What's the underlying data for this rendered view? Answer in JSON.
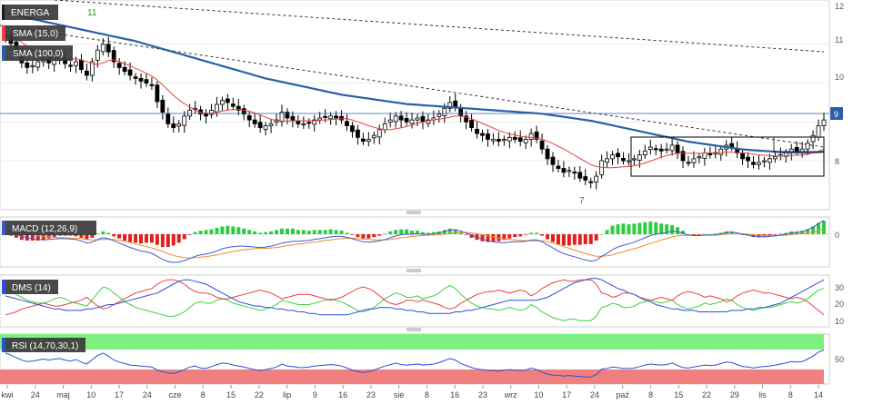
{
  "colors": {
    "up": "#ffffff",
    "down": "#000000",
    "sma15": "#e8413c",
    "sma100": "#2b5fa6",
    "macd": "#3a5bd1",
    "signal": "#f08a2a",
    "hist_pos": "#2ecc40",
    "hist_neg": "#e0201a",
    "dms_plus": "#3cd13c",
    "dms_minus": "#e8413c",
    "adx": "#2b4fd6",
    "rsi": "#2b4fd6",
    "rsi_over": "#7ff07f",
    "rsi_under": "#f07f7f",
    "label_bg": "#3a3a3a"
  },
  "price_panel": {
    "ticker": "ENERGA",
    "legend": [
      "SMA (15,0)",
      "SMA (100,0)"
    ],
    "y_ticks": [
      "12",
      "11",
      "10",
      "9",
      "8"
    ],
    "last_price_tag": "9",
    "annotations": {
      "high": "11",
      "low": "7"
    }
  },
  "macd_panel": {
    "legend": "MACD (12,26,9)",
    "y_ticks": [
      "0"
    ]
  },
  "dms_panel": {
    "legend": "DMS (14)",
    "y_ticks": [
      "30",
      "20",
      "10"
    ]
  },
  "rsi_panel": {
    "legend": "RSI (14,70,30,1)",
    "y_ticks": [
      "50"
    ]
  },
  "x_axis": {
    "labels": [
      "kwi",
      "24",
      "maj",
      "10",
      "17",
      "24",
      "cze",
      "8",
      "15",
      "22",
      "lip",
      "9",
      "16",
      "23",
      "sie",
      "8",
      "16",
      "23",
      "wrz",
      "10",
      "17",
      "24",
      "paź",
      "8",
      "15",
      "22",
      "29",
      "lis",
      "8",
      "14"
    ]
  },
  "chart_data": {
    "type": "candlestick",
    "y_range": [
      7.0,
      12.1
    ],
    "closes": [
      11.2,
      11.02,
      10.78,
      10.52,
      10.4,
      10.45,
      10.55,
      10.6,
      10.52,
      10.58,
      10.62,
      10.5,
      10.45,
      10.55,
      10.35,
      10.2,
      10.55,
      10.85,
      11.0,
      10.8,
      10.55,
      10.4,
      10.3,
      10.2,
      10.12,
      10.05,
      10.0,
      9.95,
      9.52,
      9.25,
      8.95,
      8.85,
      8.95,
      9.15,
      9.3,
      9.35,
      9.2,
      9.15,
      9.3,
      9.45,
      9.55,
      9.5,
      9.4,
      9.3,
      9.2,
      9.05,
      8.95,
      8.85,
      8.9,
      8.95,
      9.05,
      9.25,
      9.1,
      9.05,
      8.95,
      8.95,
      8.98,
      9.05,
      9.1,
      9.12,
      9.15,
      9.1,
      9.05,
      8.9,
      8.75,
      8.6,
      8.5,
      8.55,
      8.65,
      8.8,
      8.95,
      9.05,
      9.15,
      9.05,
      9.0,
      9.05,
      9.1,
      9.0,
      9.05,
      9.1,
      9.2,
      9.35,
      9.5,
      9.4,
      9.15,
      9.0,
      8.85,
      8.7,
      8.65,
      8.55,
      8.55,
      8.5,
      8.55,
      8.6,
      8.55,
      8.5,
      8.55,
      8.7,
      8.55,
      8.3,
      8.05,
      7.9,
      7.8,
      7.7,
      7.75,
      7.7,
      7.55,
      7.5,
      7.45,
      7.6,
      8.0,
      8.05,
      8.15,
      8.1,
      8.0,
      8.0,
      8.05,
      8.15,
      8.25,
      8.35,
      8.3,
      8.25,
      8.3,
      8.4,
      8.2,
      8.0,
      7.95,
      8.05,
      8.1,
      8.2,
      8.15,
      8.2,
      8.3,
      8.4,
      8.35,
      8.2,
      8.05,
      8.0,
      7.9,
      7.95,
      8.0,
      8.05,
      8.1,
      8.15,
      8.2,
      8.3,
      8.25,
      8.3,
      8.45,
      8.65,
      8.9,
      9.05
    ],
    "sma15": [
      11.3,
      11.25,
      11.15,
      11.05,
      10.95,
      10.85,
      10.78,
      10.72,
      10.68,
      10.65,
      10.62,
      10.62,
      10.62,
      10.63,
      10.6,
      10.55,
      10.5,
      10.48,
      10.52,
      10.58,
      10.6,
      10.55,
      10.5,
      10.45,
      10.38,
      10.32,
      10.25,
      10.18,
      10.08,
      9.95,
      9.82,
      9.68,
      9.57,
      9.47,
      9.38,
      9.3,
      9.25,
      9.22,
      9.22,
      9.25,
      9.28,
      9.3,
      9.32,
      9.32,
      9.3,
      9.27,
      9.23,
      9.18,
      9.12,
      9.07,
      9.03,
      9.02,
      9.02,
      9.03,
      9.03,
      9.03,
      9.03,
      9.03,
      9.04,
      9.05,
      9.06,
      9.07,
      9.08,
      9.08,
      9.05,
      9.0,
      8.95,
      8.9,
      8.86,
      8.82,
      8.8,
      8.8,
      8.82,
      8.85,
      8.88,
      8.92,
      8.96,
      9.0,
      9.03,
      9.05,
      9.07,
      9.09,
      9.12,
      9.15,
      9.15,
      9.12,
      9.08,
      9.02,
      8.96,
      8.9,
      8.84,
      8.78,
      8.73,
      8.69,
      8.66,
      8.63,
      8.61,
      8.6,
      8.58,
      8.55,
      8.5,
      8.44,
      8.37,
      8.3,
      8.22,
      8.14,
      8.06,
      7.98,
      7.9,
      7.85,
      7.83,
      7.82,
      7.82,
      7.83,
      7.84,
      7.85,
      7.87,
      7.9,
      7.94,
      7.99,
      8.04,
      8.09,
      8.13,
      8.17,
      8.19,
      8.19,
      8.19,
      8.19,
      8.19,
      8.2,
      8.2,
      8.21,
      8.21,
      8.22,
      8.22,
      8.21,
      8.2,
      8.19,
      8.17,
      8.15,
      8.14,
      8.13,
      8.12,
      8.12,
      8.12,
      8.13,
      8.14,
      8.15,
      8.17,
      8.2,
      8.24,
      8.3
    ],
    "sma100": [
      11.8,
      11.78,
      11.75,
      11.72,
      11.69,
      11.65,
      11.62,
      11.59,
      11.56,
      11.53,
      11.5,
      11.47,
      11.44,
      11.41,
      11.38,
      11.35,
      11.32,
      11.29,
      11.26,
      11.23,
      11.2,
      11.17,
      11.14,
      11.11,
      11.08,
      11.04,
      11.0,
      10.96,
      10.92,
      10.88,
      10.84,
      10.8,
      10.76,
      10.72,
      10.68,
      10.64,
      10.6,
      10.56,
      10.52,
      10.48,
      10.44,
      10.4,
      10.36,
      10.32,
      10.28,
      10.24,
      10.2,
      10.16,
      10.12,
      10.09,
      10.06,
      10.03,
      10.0,
      9.97,
      9.94,
      9.91,
      9.88,
      9.85,
      9.82,
      9.79,
      9.76,
      9.73,
      9.7,
      9.68,
      9.66,
      9.64,
      9.62,
      9.6,
      9.58,
      9.56,
      9.54,
      9.52,
      9.5,
      9.48,
      9.46,
      9.45,
      9.44,
      9.43,
      9.42,
      9.41,
      9.4,
      9.39,
      9.38,
      9.37,
      9.36,
      9.35,
      9.34,
      9.33,
      9.32,
      9.31,
      9.3,
      9.29,
      9.28,
      9.27,
      9.26,
      9.25,
      9.24,
      9.23,
      9.22,
      9.21,
      9.19,
      9.17,
      9.15,
      9.13,
      9.11,
      9.09,
      9.07,
      9.05,
      9.03,
      9.0,
      8.97,
      8.94,
      8.91,
      8.88,
      8.85,
      8.82,
      8.79,
      8.76,
      8.73,
      8.7,
      8.67,
      8.64,
      8.61,
      8.58,
      8.55,
      8.52,
      8.49,
      8.47,
      8.45,
      8.43,
      8.41,
      8.39,
      8.37,
      8.35,
      8.33,
      8.31,
      8.29,
      8.28,
      8.27,
      8.26,
      8.25,
      8.24,
      8.23,
      8.22,
      8.21,
      8.21,
      8.21,
      8.21,
      8.21,
      8.21,
      8.22,
      8.23
    ],
    "macd_range": [
      -0.7,
      0.35
    ],
    "macd": [
      0.1,
      0.05,
      0.0,
      -0.05,
      -0.08,
      -0.1,
      -0.12,
      -0.13,
      -0.12,
      -0.11,
      -0.1,
      -0.1,
      -0.11,
      -0.12,
      -0.15,
      -0.2,
      -0.18,
      -0.12,
      -0.08,
      -0.1,
      -0.15,
      -0.2,
      -0.25,
      -0.3,
      -0.34,
      -0.38,
      -0.4,
      -0.43,
      -0.5,
      -0.57,
      -0.62,
      -0.64,
      -0.63,
      -0.6,
      -0.55,
      -0.5,
      -0.47,
      -0.45,
      -0.42,
      -0.38,
      -0.33,
      -0.3,
      -0.28,
      -0.27,
      -0.27,
      -0.28,
      -0.29,
      -0.3,
      -0.29,
      -0.27,
      -0.24,
      -0.2,
      -0.18,
      -0.16,
      -0.16,
      -0.15,
      -0.14,
      -0.12,
      -0.1,
      -0.08,
      -0.06,
      -0.05,
      -0.05,
      -0.07,
      -0.1,
      -0.14,
      -0.17,
      -0.18,
      -0.17,
      -0.15,
      -0.12,
      -0.08,
      -0.04,
      -0.01,
      0.0,
      0.0,
      0.01,
      0.0,
      0.0,
      0.01,
      0.03,
      0.06,
      0.1,
      0.1,
      0.07,
      0.03,
      -0.02,
      -0.07,
      -0.11,
      -0.15,
      -0.17,
      -0.19,
      -0.19,
      -0.18,
      -0.17,
      -0.17,
      -0.16,
      -0.13,
      -0.13,
      -0.17,
      -0.24,
      -0.31,
      -0.38,
      -0.44,
      -0.48,
      -0.51,
      -0.55,
      -0.58,
      -0.61,
      -0.59,
      -0.5,
      -0.43,
      -0.35,
      -0.29,
      -0.25,
      -0.22,
      -0.18,
      -0.13,
      -0.08,
      -0.03,
      0.0,
      0.02,
      0.04,
      0.07,
      0.06,
      0.02,
      -0.02,
      -0.03,
      -0.03,
      -0.02,
      -0.02,
      -0.01,
      0.01,
      0.04,
      0.05,
      0.03,
      0.0,
      -0.02,
      -0.05,
      -0.06,
      -0.06,
      -0.05,
      -0.04,
      -0.02,
      0.0,
      0.03,
      0.04,
      0.06,
      0.1,
      0.16,
      0.24,
      0.31
    ],
    "macd_signal": [
      0.08,
      0.07,
      0.05,
      0.03,
      0.01,
      -0.01,
      -0.03,
      -0.05,
      -0.06,
      -0.07,
      -0.08,
      -0.08,
      -0.09,
      -0.09,
      -0.1,
      -0.12,
      -0.13,
      -0.13,
      -0.12,
      -0.12,
      -0.12,
      -0.14,
      -0.16,
      -0.19,
      -0.22,
      -0.25,
      -0.28,
      -0.31,
      -0.35,
      -0.39,
      -0.44,
      -0.48,
      -0.51,
      -0.53,
      -0.54,
      -0.53,
      -0.52,
      -0.51,
      -0.49,
      -0.47,
      -0.44,
      -0.42,
      -0.39,
      -0.37,
      -0.35,
      -0.34,
      -0.33,
      -0.32,
      -0.32,
      -0.31,
      -0.3,
      -0.28,
      -0.26,
      -0.24,
      -0.22,
      -0.21,
      -0.19,
      -0.18,
      -0.16,
      -0.14,
      -0.13,
      -0.11,
      -0.1,
      -0.09,
      -0.09,
      -0.1,
      -0.11,
      -0.12,
      -0.13,
      -0.13,
      -0.13,
      -0.12,
      -0.1,
      -0.08,
      -0.07,
      -0.05,
      -0.04,
      -0.03,
      -0.02,
      -0.02,
      -0.01,
      0.0,
      0.02,
      0.03,
      0.04,
      0.04,
      0.03,
      0.01,
      -0.01,
      -0.04,
      -0.06,
      -0.09,
      -0.11,
      -0.12,
      -0.13,
      -0.14,
      -0.15,
      -0.15,
      -0.15,
      -0.15,
      -0.17,
      -0.2,
      -0.23,
      -0.28,
      -0.32,
      -0.36,
      -0.4,
      -0.44,
      -0.47,
      -0.5,
      -0.5,
      -0.49,
      -0.47,
      -0.43,
      -0.4,
      -0.36,
      -0.33,
      -0.29,
      -0.25,
      -0.21,
      -0.17,
      -0.13,
      -0.1,
      -0.06,
      -0.04,
      -0.03,
      -0.02,
      -0.02,
      -0.02,
      -0.02,
      -0.02,
      -0.02,
      -0.01,
      0.0,
      0.01,
      0.01,
      0.01,
      0.0,
      -0.01,
      -0.02,
      -0.03,
      -0.03,
      -0.03,
      -0.03,
      -0.02,
      -0.01,
      0.0,
      0.01,
      0.03,
      0.05,
      0.08,
      0.12
    ],
    "dms_range": [
      5,
      38
    ],
    "di_plus": [
      30,
      28,
      26,
      24,
      22,
      21,
      20,
      20,
      21,
      23,
      24,
      23,
      21,
      20,
      19,
      18,
      22,
      27,
      31,
      30,
      27,
      24,
      21,
      19,
      17,
      16,
      15,
      14,
      13,
      12,
      11,
      11,
      12,
      14,
      17,
      20,
      21,
      20,
      20,
      22,
      23,
      22,
      20,
      19,
      18,
      17,
      16,
      15,
      16,
      17,
      19,
      22,
      21,
      20,
      19,
      19,
      19,
      20,
      21,
      22,
      23,
      22,
      21,
      19,
      17,
      15,
      14,
      15,
      17,
      20,
      23,
      25,
      27,
      26,
      24,
      24,
      25,
      23,
      24,
      25,
      27,
      30,
      32,
      30,
      26,
      23,
      20,
      18,
      17,
      16,
      16,
      15,
      16,
      17,
      16,
      15,
      16,
      19,
      17,
      14,
      12,
      10,
      9,
      8,
      9,
      9,
      8,
      8,
      8,
      11,
      17,
      18,
      20,
      19,
      17,
      17,
      18,
      20,
      21,
      22,
      21,
      20,
      21,
      22,
      19,
      17,
      16,
      17,
      18,
      20,
      19,
      20,
      21,
      23,
      22,
      19,
      17,
      16,
      15,
      16,
      17,
      17,
      18,
      19,
      20,
      21,
      20,
      21,
      23,
      26,
      29,
      30
    ],
    "di_minus": [
      12,
      13,
      14,
      16,
      17,
      18,
      19,
      20,
      19,
      18,
      18,
      19,
      20,
      21,
      22,
      24,
      21,
      18,
      16,
      17,
      19,
      21,
      23,
      25,
      27,
      28,
      29,
      30,
      33,
      35,
      36,
      36,
      35,
      33,
      30,
      28,
      27,
      27,
      26,
      24,
      23,
      23,
      24,
      25,
      26,
      27,
      28,
      29,
      28,
      27,
      25,
      23,
      24,
      25,
      26,
      26,
      26,
      25,
      24,
      23,
      22,
      23,
      24,
      26,
      28,
      30,
      31,
      30,
      28,
      25,
      22,
      20,
      19,
      20,
      22,
      22,
      21,
      22,
      21,
      20,
      19,
      17,
      16,
      17,
      20,
      22,
      24,
      26,
      27,
      28,
      28,
      29,
      28,
      27,
      28,
      29,
      28,
      25,
      27,
      30,
      32,
      34,
      35,
      36,
      35,
      35,
      36,
      36,
      36,
      33,
      27,
      26,
      24,
      25,
      27,
      27,
      26,
      24,
      23,
      22,
      23,
      24,
      23,
      22,
      25,
      27,
      28,
      27,
      26,
      24,
      25,
      24,
      23,
      21,
      22,
      25,
      27,
      28,
      29,
      28,
      27,
      27,
      26,
      25,
      24,
      23,
      24,
      23,
      21,
      18,
      15,
      12
    ],
    "adx": [
      25,
      24,
      23,
      22,
      21,
      20,
      19,
      18,
      17,
      16,
      16,
      15,
      15,
      15,
      15,
      16,
      16,
      17,
      18,
      19,
      19,
      20,
      21,
      22,
      23,
      24,
      25,
      26,
      27,
      29,
      31,
      33,
      35,
      36,
      36,
      35,
      34,
      33,
      31,
      29,
      27,
      25,
      23,
      21,
      20,
      19,
      18,
      18,
      17,
      17,
      16,
      16,
      15,
      15,
      14,
      14,
      13,
      13,
      12,
      12,
      12,
      12,
      12,
      12,
      13,
      14,
      15,
      16,
      16,
      17,
      17,
      17,
      16,
      16,
      15,
      15,
      14,
      14,
      13,
      13,
      13,
      13,
      13,
      14,
      14,
      15,
      15,
      16,
      17,
      18,
      19,
      20,
      21,
      22,
      22,
      22,
      22,
      22,
      22,
      23,
      24,
      26,
      28,
      30,
      32,
      34,
      35,
      36,
      37,
      37,
      36,
      34,
      32,
      30,
      29,
      27,
      26,
      24,
      22,
      21,
      19,
      18,
      17,
      16,
      16,
      15,
      15,
      15,
      14,
      14,
      14,
      14,
      14,
      14,
      15,
      15,
      15,
      16,
      16,
      17,
      17,
      18,
      19,
      20,
      22,
      24,
      26,
      28,
      30,
      32,
      34,
      36
    ],
    "rsi_range": [
      0,
      100
    ],
    "rsi": [
      62,
      58,
      53,
      48,
      45,
      46,
      48,
      50,
      48,
      50,
      51,
      48,
      46,
      49,
      44,
      40,
      49,
      57,
      62,
      56,
      48,
      44,
      41,
      38,
      37,
      36,
      35,
      34,
      28,
      25,
      22,
      21,
      24,
      29,
      34,
      36,
      32,
      31,
      35,
      39,
      42,
      41,
      38,
      36,
      34,
      31,
      29,
      27,
      29,
      31,
      34,
      40,
      36,
      35,
      33,
      33,
      34,
      36,
      37,
      38,
      39,
      38,
      36,
      32,
      28,
      25,
      23,
      25,
      28,
      32,
      36,
      39,
      42,
      39,
      38,
      39,
      40,
      38,
      39,
      40,
      43,
      47,
      51,
      48,
      41,
      37,
      33,
      30,
      29,
      27,
      27,
      26,
      28,
      29,
      28,
      27,
      28,
      32,
      29,
      24,
      20,
      18,
      17,
      16,
      17,
      16,
      15,
      14,
      14,
      19,
      30,
      31,
      34,
      33,
      31,
      31,
      32,
      35,
      38,
      40,
      39,
      38,
      39,
      42,
      37,
      33,
      32,
      34,
      36,
      38,
      37,
      38,
      41,
      44,
      43,
      39,
      35,
      34,
      32,
      34,
      35,
      36,
      38,
      40,
      42,
      45,
      44,
      45,
      50,
      56,
      64,
      68
    ]
  }
}
